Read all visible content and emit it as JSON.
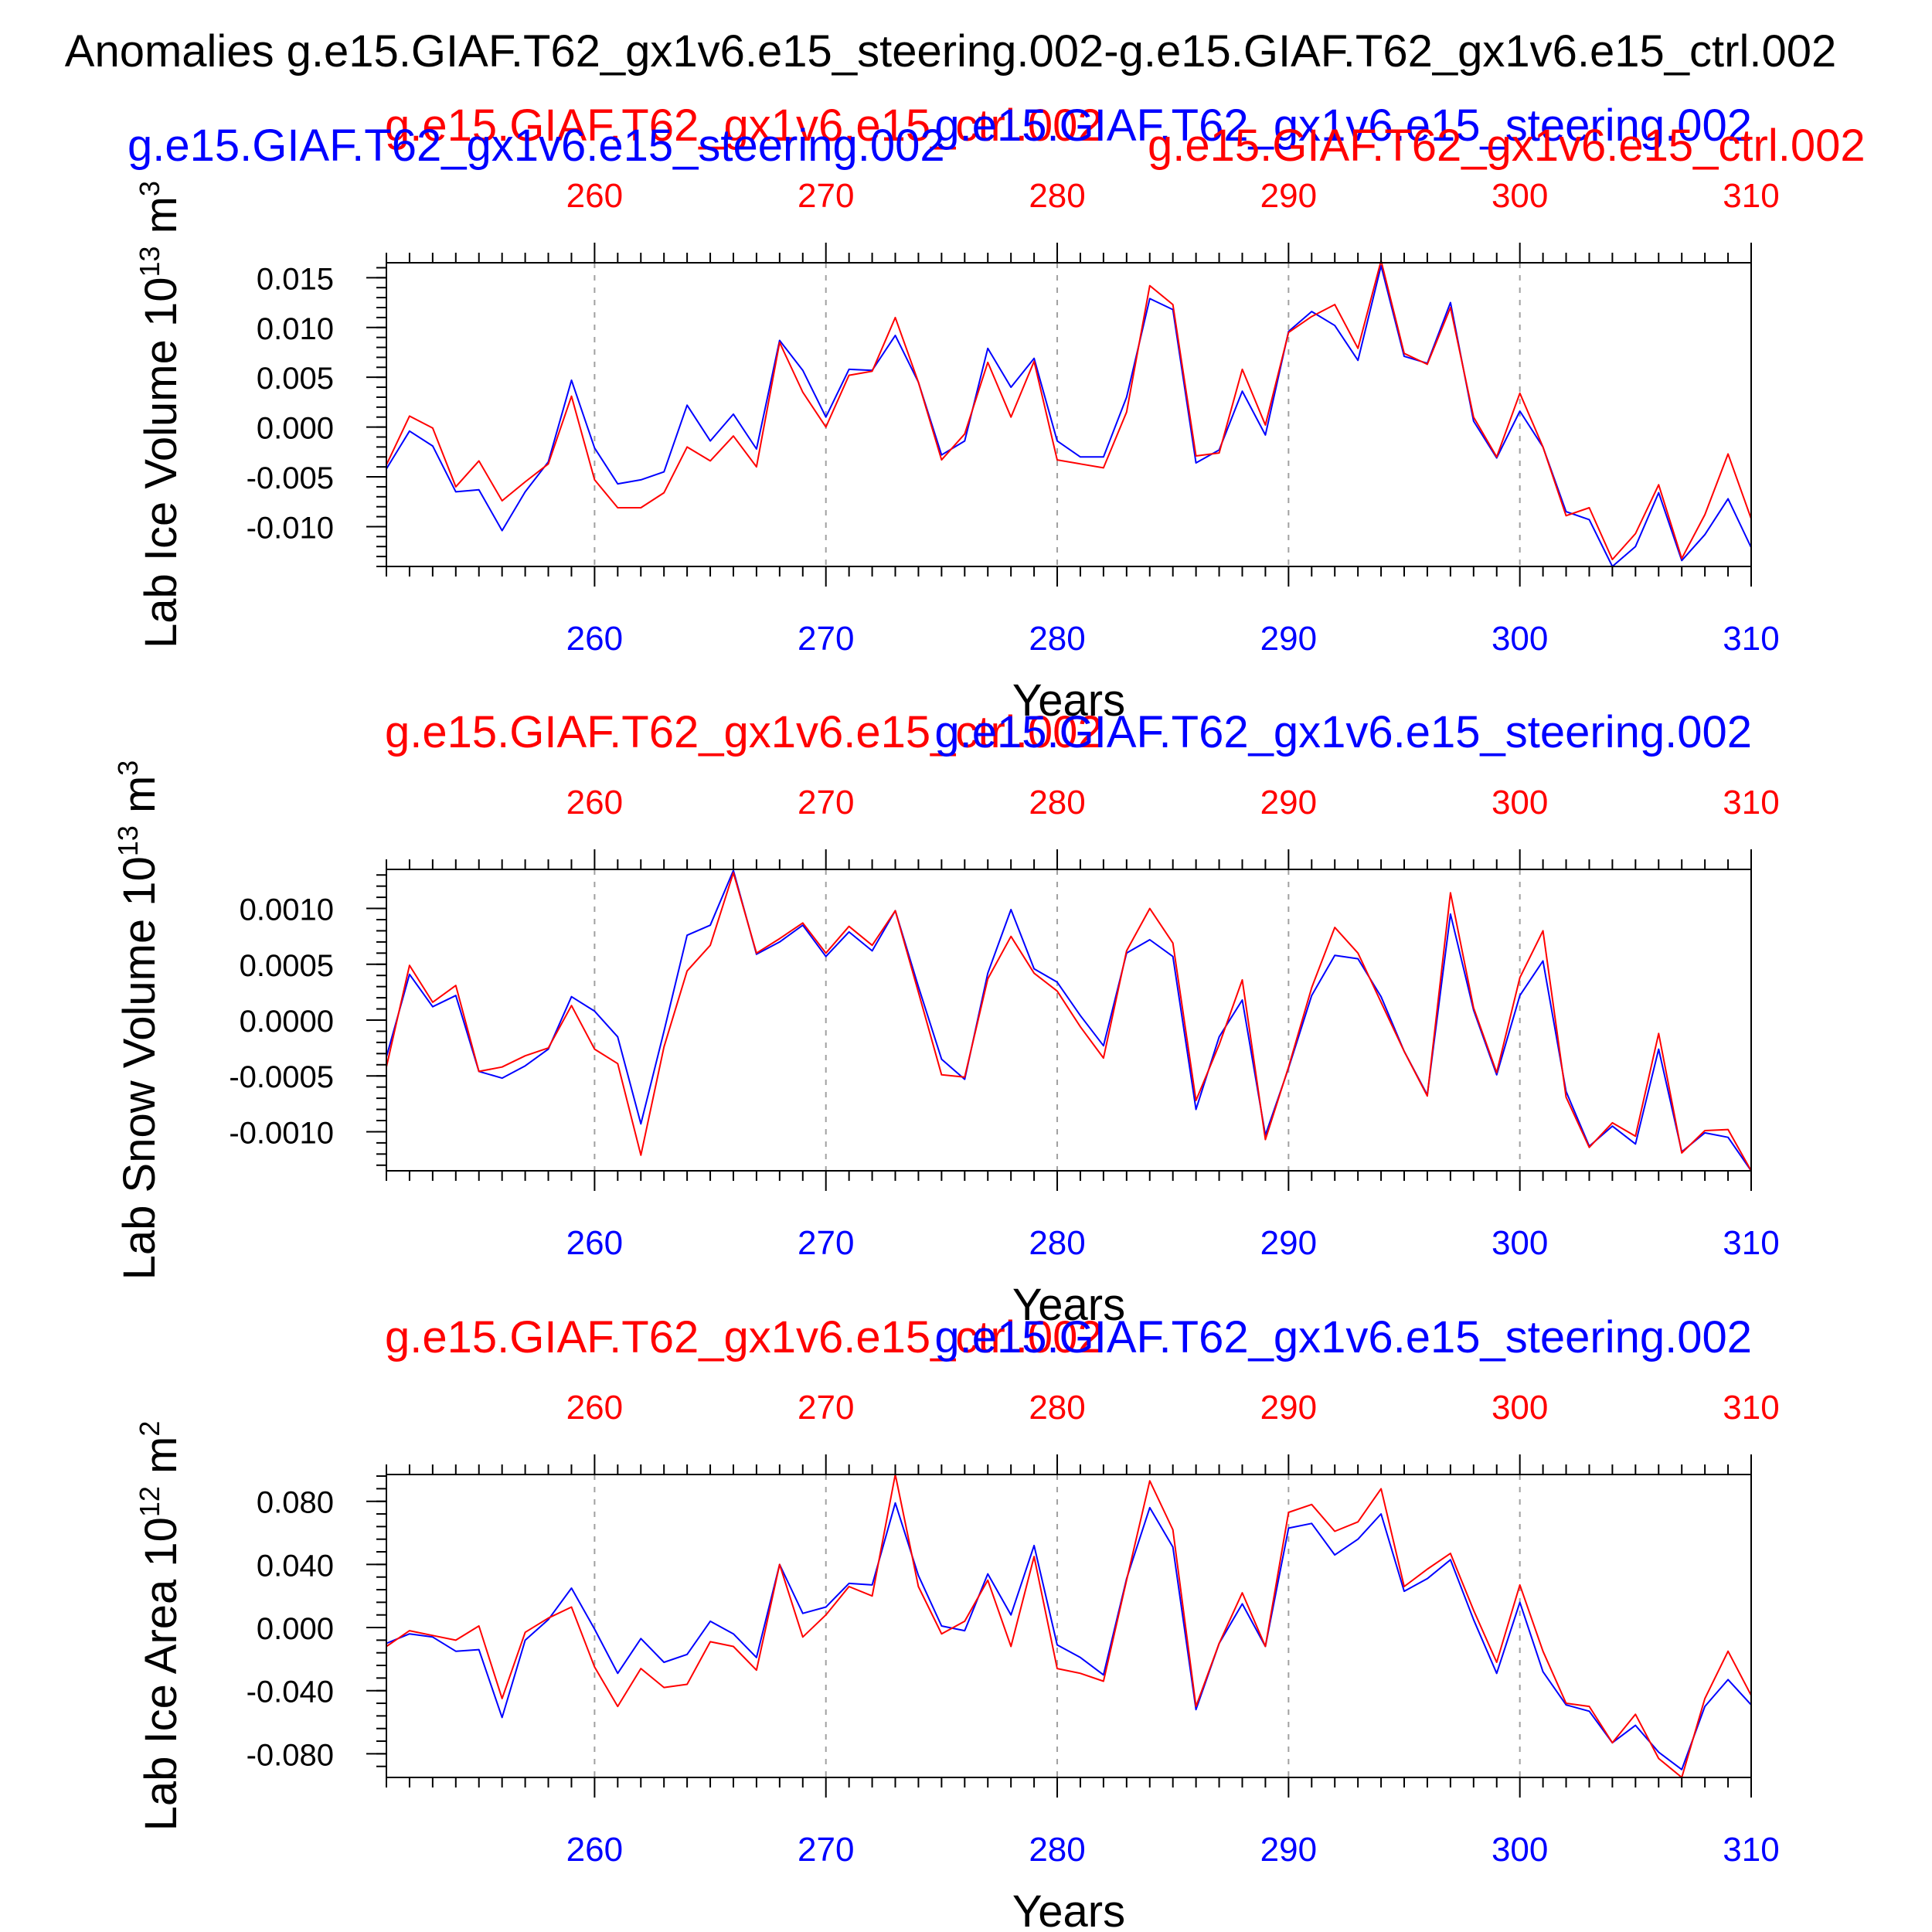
{
  "title": "Anomalies g.e15.GIAF.T62_gx1v6.e15_steering.002-g.e15.GIAF.T62_gx1v6.e15_ctrl.002",
  "colors": {
    "steering": "#0000ff",
    "ctrl": "#ff0000",
    "axis": "#000000",
    "grid": "#a0a0a0"
  },
  "chart_data": [
    {
      "type": "line",
      "ylabel_base": "Lab Ice Volume 10",
      "ylabel_exp": "13",
      "ylabel_unit": " m",
      "ylabel_unit_exp": "3",
      "xlabel": "Years",
      "top_left_legend": "g.e15.GIAF.T62_gx1v6.e15_ctrl.002",
      "top_right_legend": "g.e15.GIAF.T62_gx1v6.e15_steering.002",
      "overlay_left_legend": "g.e15.GIAF.T62_gx1v6.e15_steering.002",
      "overlay_right_legend": "g.e15.GIAF.T62_gx1v6.e15_ctrl.002",
      "xlim": [
        251,
        310
      ],
      "ylim": [
        -0.014,
        0.0165
      ],
      "xticks": [
        260,
        270,
        280,
        290,
        300,
        310
      ],
      "yticks": [
        -0.01,
        -0.005,
        0.0,
        0.005,
        0.01,
        0.015
      ],
      "ytick_labels": [
        "-0.010",
        "-0.005",
        "0.000",
        "0.005",
        "0.010",
        "0.015"
      ],
      "yminor": 0.001,
      "x": [
        251,
        252,
        253,
        254,
        255,
        256,
        257,
        258,
        259,
        260,
        261,
        262,
        263,
        264,
        265,
        266,
        267,
        268,
        269,
        270,
        271,
        272,
        273,
        274,
        275,
        276,
        277,
        278,
        279,
        280,
        281,
        282,
        283,
        284,
        285,
        286,
        287,
        288,
        289,
        290,
        291,
        292,
        293,
        294,
        295,
        296,
        297,
        298,
        299,
        300,
        301,
        302,
        303,
        304,
        305,
        306,
        307,
        308,
        309,
        310
      ],
      "series": [
        {
          "name": "g.e15.GIAF.T62_gx1v6.e15_steering.002",
          "color": "#0000ff",
          "values": [
            -0.0042,
            -0.0004,
            -0.0019,
            -0.0065,
            -0.0063,
            -0.0104,
            -0.0065,
            -0.0035,
            0.0047,
            -0.0021,
            -0.0057,
            -0.0053,
            -0.0045,
            0.0022,
            -0.0014,
            0.0013,
            -0.0022,
            0.0087,
            0.0057,
            0.001,
            0.0058,
            0.0057,
            0.0092,
            0.0045,
            -0.0028,
            -0.0014,
            0.0079,
            0.004,
            0.0069,
            -0.0014,
            -0.003,
            -0.003,
            0.003,
            0.0129,
            0.0118,
            -0.0036,
            -0.0023,
            0.0036,
            -0.0008,
            0.0096,
            0.0116,
            0.0102,
            0.0067,
            0.0162,
            0.0071,
            0.0064,
            0.0125,
            0.0006,
            -0.0031,
            0.0016,
            -0.002,
            -0.0085,
            -0.0093,
            -0.014,
            -0.012,
            -0.0066,
            -0.0134,
            -0.0108,
            -0.0072,
            -0.0121
          ]
        },
        {
          "name": "g.e15.GIAF.T62_gx1v6.e15_ctrl.002",
          "color": "#ff0000",
          "values": [
            -0.0038,
            0.0011,
            -0.0001,
            -0.006,
            -0.0034,
            -0.0074,
            -0.0055,
            -0.0037,
            0.0031,
            -0.0053,
            -0.0081,
            -0.0081,
            -0.0066,
            -0.002,
            -0.0034,
            -0.0009,
            -0.004,
            0.0085,
            0.0035,
            0.0,
            0.0052,
            0.0056,
            0.011,
            0.0045,
            -0.0033,
            -0.0007,
            0.0065,
            0.001,
            0.0066,
            -0.0033,
            -0.0037,
            -0.0041,
            0.0015,
            0.0142,
            0.0123,
            -0.0029,
            -0.0026,
            0.0058,
            0.0002,
            0.0095,
            0.0111,
            0.0123,
            0.0079,
            0.0167,
            0.0074,
            0.0063,
            0.012,
            0.001,
            -0.003,
            0.0034,
            -0.002,
            -0.0089,
            -0.0081,
            -0.0133,
            -0.0107,
            -0.0058,
            -0.0132,
            -0.0088,
            -0.0027,
            -0.0092
          ]
        }
      ]
    },
    {
      "type": "line",
      "ylabel_base": "Lab Snow Volume 10",
      "ylabel_exp": "13",
      "ylabel_unit": " m",
      "ylabel_unit_exp": "3",
      "xlabel": "Years",
      "top_left_legend": "g.e15.GIAF.T62_gx1v6.e15_ctrl.002",
      "top_right_legend": "g.e15.GIAF.T62_gx1v6.e15_steering.002",
      "xlim": [
        251,
        310
      ],
      "ylim": [
        -0.00135,
        0.00135
      ],
      "xticks": [
        260,
        270,
        280,
        290,
        300,
        310
      ],
      "yticks": [
        -0.001,
        -0.0005,
        0.0,
        0.0005,
        0.001
      ],
      "ytick_labels": [
        "-0.0010",
        "-0.0005",
        "0.0000",
        "0.0005",
        "0.0010"
      ],
      "yminor": 0.0001,
      "x": [
        251,
        252,
        253,
        254,
        255,
        256,
        257,
        258,
        259,
        260,
        261,
        262,
        263,
        264,
        265,
        266,
        267,
        268,
        269,
        270,
        271,
        272,
        273,
        274,
        275,
        276,
        277,
        278,
        279,
        280,
        281,
        282,
        283,
        284,
        285,
        286,
        287,
        288,
        289,
        290,
        291,
        292,
        293,
        294,
        295,
        296,
        297,
        298,
        299,
        300,
        301,
        302,
        303,
        304,
        305,
        306,
        307,
        308,
        309,
        310
      ],
      "series": [
        {
          "name": "g.e15.GIAF.T62_gx1v6.e15_steering.002",
          "color": "#0000ff",
          "values": [
            -0.00033,
            0.00041,
            0.00012,
            0.00022,
            -0.00046,
            -0.00052,
            -0.00041,
            -0.00026,
            0.00021,
            8e-05,
            -0.00015,
            -0.00093,
            -0.0001,
            0.00076,
            0.00085,
            0.00134,
            0.00059,
            0.0007,
            0.00085,
            0.00057,
            0.00079,
            0.00062,
            0.00098,
            0.0003,
            -0.00035,
            -0.00053,
            0.00042,
            0.00099,
            0.00046,
            0.00034,
            4e-05,
            -0.00023,
            0.0006,
            0.00072,
            0.00057,
            -0.0008,
            -0.00015,
            0.00018,
            -0.00103,
            -0.00043,
            0.00022,
            0.00058,
            0.00055,
            0.00021,
            -0.00028,
            -0.00067,
            0.00095,
            9e-05,
            -0.00049,
            0.00022,
            0.00053,
            -0.00064,
            -0.00113,
            -0.00095,
            -0.00111,
            -0.00026,
            -0.00118,
            -0.00101,
            -0.00105,
            -0.00135
          ]
        },
        {
          "name": "g.e15.GIAF.T62_gx1v6.e15_ctrl.002",
          "color": "#ff0000",
          "values": [
            -0.00042,
            0.00049,
            0.00016,
            0.00031,
            -0.00046,
            -0.00042,
            -0.00032,
            -0.00025,
            0.00013,
            -0.00026,
            -0.00039,
            -0.00121,
            -0.00024,
            0.00044,
            0.00067,
            0.00132,
            0.0006,
            0.00073,
            0.00087,
            0.0006,
            0.00084,
            0.00067,
            0.00098,
            0.00025,
            -0.00049,
            -0.00051,
            0.00037,
            0.00075,
            0.00042,
            0.00026,
            -6e-05,
            -0.00034,
            0.00062,
            0.001,
            0.00069,
            -0.00072,
            -0.00022,
            0.00036,
            -0.00107,
            -0.00042,
            0.00029,
            0.00083,
            0.0006,
            0.00016,
            -0.00028,
            -0.00068,
            0.00114,
            0.00011,
            -0.00047,
            0.00038,
            0.0008,
            -0.00069,
            -0.00114,
            -0.00092,
            -0.00104,
            -0.00012,
            -0.00119,
            -0.00099,
            -0.00098,
            -0.00135
          ]
        }
      ]
    },
    {
      "type": "line",
      "ylabel_base": "Lab Ice Area 10",
      "ylabel_exp": "12",
      "ylabel_unit": " m",
      "ylabel_unit_exp": "2",
      "xlabel": "Years",
      "top_left_legend": "g.e15.GIAF.T62_gx1v6.e15_ctrl.002",
      "top_right_legend": "g.e15.GIAF.T62_gx1v6.e15_steering.002",
      "xlim": [
        251,
        310
      ],
      "ylim": [
        -0.095,
        0.097
      ],
      "xticks": [
        260,
        270,
        280,
        290,
        300,
        310
      ],
      "yticks": [
        -0.08,
        -0.04,
        0.0,
        0.04,
        0.08
      ],
      "ytick_labels": [
        "-0.080",
        "-0.040",
        "0.000",
        "0.040",
        "0.080"
      ],
      "yminor": 0.008,
      "x": [
        251,
        252,
        253,
        254,
        255,
        256,
        257,
        258,
        259,
        260,
        261,
        262,
        263,
        264,
        265,
        266,
        267,
        268,
        269,
        270,
        271,
        272,
        273,
        274,
        275,
        276,
        277,
        278,
        279,
        280,
        281,
        282,
        283,
        284,
        285,
        286,
        287,
        288,
        289,
        290,
        291,
        292,
        293,
        294,
        295,
        296,
        297,
        298,
        299,
        300,
        301,
        302,
        303,
        304,
        305,
        306,
        307,
        308,
        309,
        310
      ],
      "series": [
        {
          "name": "g.e15.GIAF.T62_gx1v6.e15_steering.002",
          "color": "#0000ff",
          "values": [
            -0.01,
            -0.004,
            -0.006,
            -0.015,
            -0.014,
            -0.057,
            -0.008,
            0.005,
            0.025,
            -0.001,
            -0.029,
            -0.007,
            -0.022,
            -0.017,
            0.004,
            -0.004,
            -0.019,
            0.04,
            0.009,
            0.013,
            0.028,
            0.027,
            0.079,
            0.033,
            0.001,
            -0.002,
            0.034,
            0.008,
            0.052,
            -0.011,
            -0.019,
            -0.03,
            0.031,
            0.076,
            0.051,
            -0.052,
            -0.01,
            0.015,
            -0.012,
            0.063,
            0.066,
            0.046,
            0.056,
            0.072,
            0.023,
            0.031,
            0.043,
            0.005,
            -0.029,
            0.016,
            -0.028,
            -0.049,
            -0.053,
            -0.073,
            -0.062,
            -0.079,
            -0.09,
            -0.05,
            -0.033,
            -0.049
          ]
        },
        {
          "name": "g.e15.GIAF.T62_gx1v6.e15_ctrl.002",
          "color": "#ff0000",
          "values": [
            -0.012,
            -0.002,
            -0.005,
            -0.008,
            0.001,
            -0.045,
            -0.003,
            0.006,
            0.013,
            -0.025,
            -0.05,
            -0.026,
            -0.038,
            -0.036,
            -0.009,
            -0.012,
            -0.027,
            0.04,
            -0.006,
            0.008,
            0.026,
            0.02,
            0.097,
            0.026,
            -0.004,
            0.004,
            0.03,
            -0.012,
            0.045,
            -0.026,
            -0.029,
            -0.034,
            0.03,
            0.093,
            0.062,
            -0.05,
            -0.01,
            0.022,
            -0.012,
            0.073,
            0.078,
            0.061,
            0.067,
            0.088,
            0.026,
            0.037,
            0.047,
            0.011,
            -0.022,
            0.027,
            -0.015,
            -0.048,
            -0.05,
            -0.073,
            -0.055,
            -0.083,
            -0.095,
            -0.045,
            -0.015,
            -0.043
          ]
        }
      ]
    }
  ]
}
